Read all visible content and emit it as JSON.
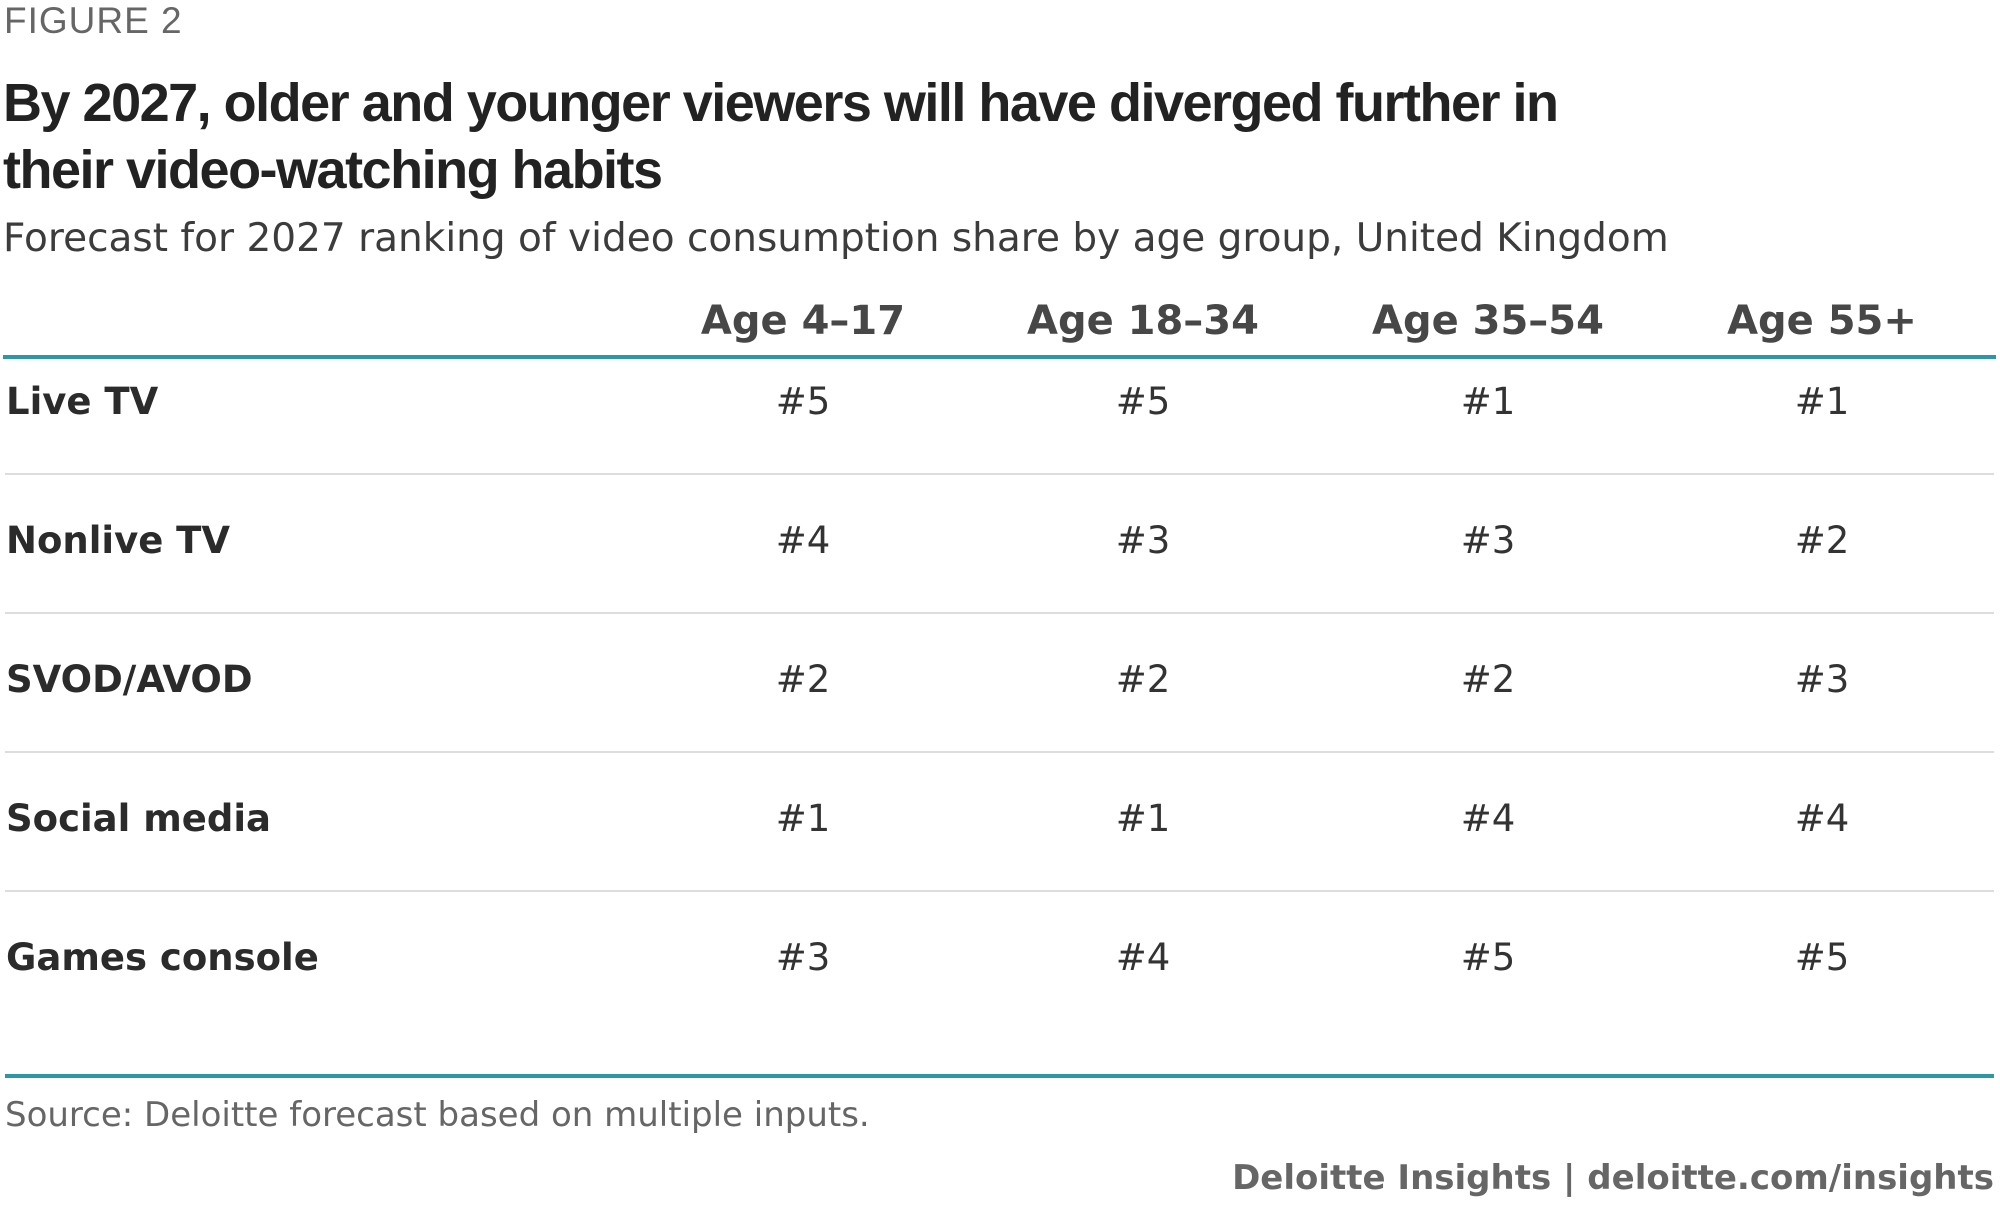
{
  "figure_label": "FIGURE 2",
  "chart_data": {
    "type": "table",
    "title": "By 2027, older and younger viewers will have diverged further in their video-watching habits",
    "subtitle": "Forecast for 2027 ranking of video consumption share by age group, United Kingdom",
    "columns": [
      "Age 4–17",
      "Age 18–34",
      "Age 35–54",
      "Age 55+"
    ],
    "rows": [
      {
        "label": "Live TV",
        "values": [
          "#5",
          "#5",
          "#1",
          "#1"
        ]
      },
      {
        "label": "Nonlive TV",
        "values": [
          "#4",
          "#3",
          "#3",
          "#2"
        ]
      },
      {
        "label": "SVOD/AVOD",
        "values": [
          "#2",
          "#2",
          "#2",
          "#3"
        ]
      },
      {
        "label": "Social media",
        "values": [
          "#1",
          "#1",
          "#4",
          "#4"
        ]
      },
      {
        "label": "Games console",
        "values": [
          "#3",
          "#4",
          "#5",
          "#5"
        ]
      }
    ],
    "accent_color": "#2c97a6"
  },
  "source": "Source: Deloitte forecast based on multiple inputs.",
  "credit": "Deloitte Insights | deloitte.com/insights"
}
